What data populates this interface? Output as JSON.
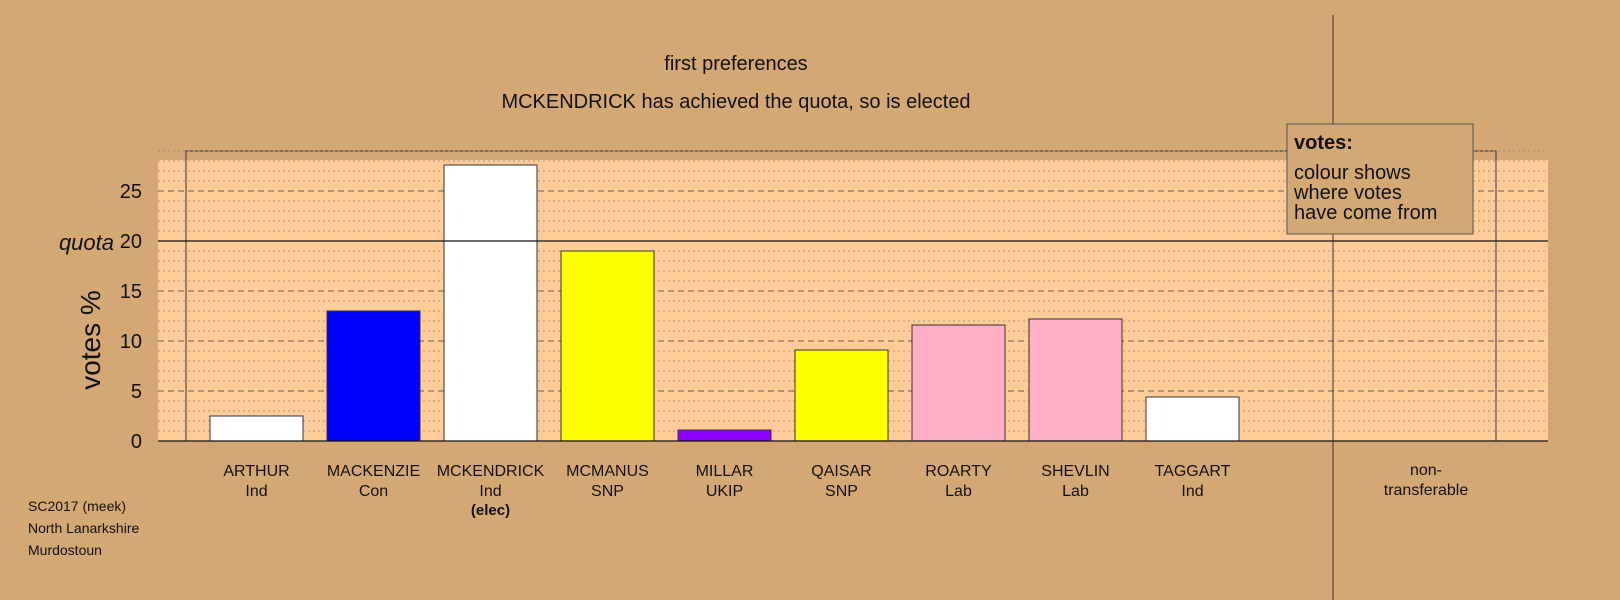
{
  "chart_data": {
    "type": "bar",
    "title": "first preferences",
    "subtitle": "MCKENDRICK has achieved the quota, so is elected",
    "ylabel": "votes %",
    "ylim": [
      0,
      29
    ],
    "yticks": [
      0,
      5,
      10,
      15,
      20,
      25
    ],
    "quota": 20,
    "quota_label": "quota",
    "categories": [
      {
        "name": "ARTHUR",
        "party": "Ind",
        "note": "",
        "value": 2.5,
        "color": "#ffffff"
      },
      {
        "name": "MACKENZIE",
        "party": "Con",
        "note": "",
        "value": 13.0,
        "color": "#0000ff"
      },
      {
        "name": "MCKENDRICK",
        "party": "Ind",
        "note": "(elec)",
        "value": 27.6,
        "color": "#ffffff"
      },
      {
        "name": "MCMANUS",
        "party": "SNP",
        "note": "",
        "value": 19.0,
        "color": "#ffff00"
      },
      {
        "name": "MILLAR",
        "party": "UKIP",
        "note": "",
        "value": 1.1,
        "color": "#8b00ff"
      },
      {
        "name": "QAISAR",
        "party": "SNP",
        "note": "",
        "value": 9.1,
        "color": "#ffff00"
      },
      {
        "name": "ROARTY",
        "party": "Lab",
        "note": "",
        "value": 11.6,
        "color": "#ffb0c4"
      },
      {
        "name": "SHEVLIN",
        "party": "Lab",
        "note": "",
        "value": 12.2,
        "color": "#ffb0c4"
      },
      {
        "name": "TAGGART",
        "party": "Ind",
        "note": "",
        "value": 4.4,
        "color": "#ffffff"
      }
    ],
    "nontransferable": {
      "line1": "non-",
      "line2": "transferable",
      "value": 0
    },
    "legend": {
      "title": "votes:",
      "lines": [
        "colour shows",
        "where votes",
        "have come from"
      ],
      "placement": "top-right"
    },
    "grid": true
  },
  "footer": {
    "line1": "SC2017 (meek)",
    "line2": "North Lanarkshire",
    "line3": "Murdostoun"
  },
  "colors": {
    "background": "#d4a875",
    "plot_area": "#ffcc99",
    "shaded_area": "#e0b27e"
  }
}
